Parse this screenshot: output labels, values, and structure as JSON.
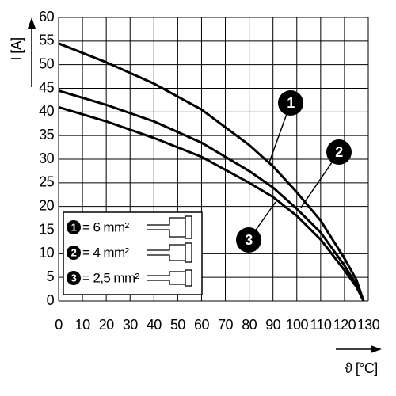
{
  "chart_data": {
    "type": "line",
    "y_label": "I [A]",
    "x_label": "ϑ [°C]",
    "xlim": [
      0,
      130
    ],
    "xticks": [
      0,
      10,
      20,
      30,
      40,
      50,
      60,
      70,
      80,
      90,
      100,
      110,
      120,
      130
    ],
    "ylim": [
      0,
      60
    ],
    "yticks": [
      0,
      5,
      10,
      15,
      20,
      25,
      30,
      35,
      40,
      45,
      50,
      55,
      60
    ],
    "grid": true,
    "x": [
      0,
      20,
      40,
      60,
      80,
      90,
      100,
      110,
      120,
      125,
      128
    ],
    "series": [
      {
        "marker": "1",
        "name": "= 6 mm²",
        "color": "#000000",
        "values": [
          54.5,
          50.5,
          46,
          40.5,
          33,
          28.5,
          23,
          17,
          9,
          4.5,
          0
        ]
      },
      {
        "marker": "2",
        "name": "= 4 mm²",
        "color": "#000000",
        "values": [
          44.5,
          41.5,
          38,
          33.5,
          27.5,
          24,
          19.5,
          14.5,
          7.5,
          3.5,
          0
        ]
      },
      {
        "marker": "3",
        "name": "= 2,5 mm²",
        "color": "#000000",
        "values": [
          41,
          38,
          34.5,
          30.5,
          25,
          22,
          18,
          13,
          6.5,
          3,
          0
        ]
      }
    ]
  }
}
